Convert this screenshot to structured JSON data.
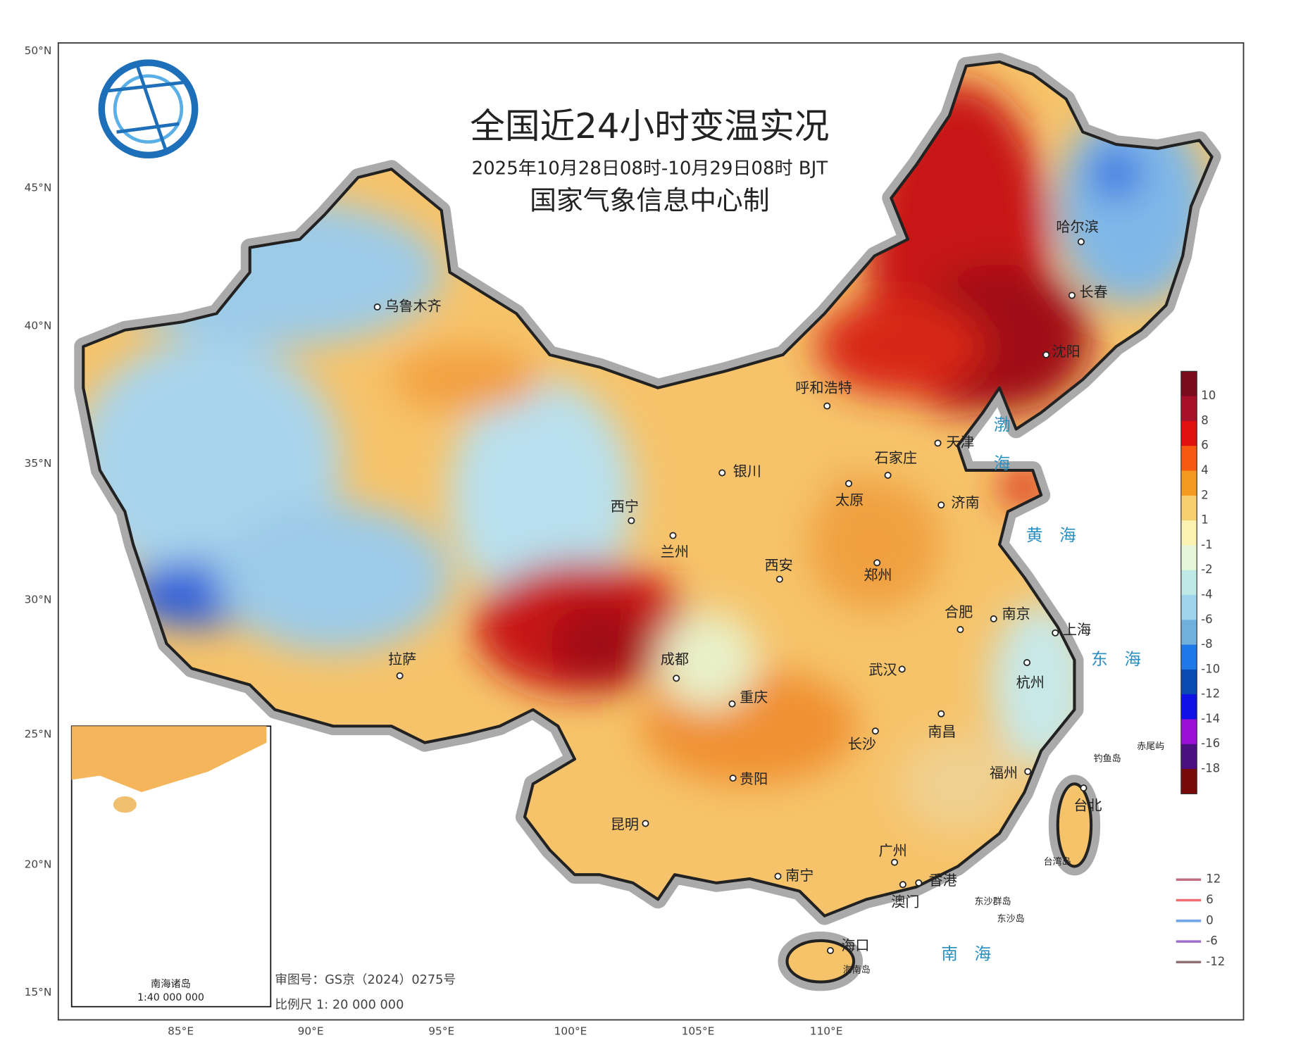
{
  "header": {
    "title": "全国近24小时变温实况",
    "subtitle": "2025年10月28日08时-10月29日08时 BJT",
    "producer": "国家气象信息中心制"
  },
  "axes": {
    "latitude": [
      "50°N",
      "45°N",
      "40°N",
      "35°N",
      "30°N",
      "25°N",
      "20°N",
      "15°N"
    ],
    "longitude": [
      "85°E",
      "90°E",
      "95°E",
      "100°E",
      "105°E",
      "110°E"
    ]
  },
  "cities": [
    "乌鲁木齐",
    "哈尔滨",
    "长春",
    "沈阳",
    "呼和浩特",
    "天津",
    "石家庄",
    "银川",
    "太原",
    "济南",
    "西宁",
    "兰州",
    "西安",
    "郑州",
    "合肥",
    "南京",
    "上海",
    "拉萨",
    "成都",
    "武汉",
    "杭州",
    "重庆",
    "南昌",
    "长沙",
    "福州",
    "贵阳",
    "台北",
    "昆明",
    "广州",
    "南宁",
    "香港",
    "澳门",
    "海口"
  ],
  "places": [
    "赤尾屿",
    "钓鱼岛",
    "台湾岛",
    "东沙群岛",
    "东沙岛",
    "海南岛"
  ],
  "seas": [
    "渤",
    "海",
    "黄　海",
    "东　海",
    "南　海"
  ],
  "colorbar": {
    "labels": [
      10,
      8,
      6,
      4,
      2,
      1,
      -1,
      -2,
      -4,
      -6,
      -8,
      -10,
      -12,
      -14,
      -16,
      -18
    ]
  },
  "contour_legend": {
    "labels": [
      12,
      6,
      0,
      -6,
      -12
    ]
  },
  "inset": {
    "title": "南海诸岛",
    "scale": "1:40 000 000"
  },
  "footer": {
    "review_number": "审图号：GS京（2024）0275号",
    "scale": "比例尺 1: 20 000 000"
  }
}
